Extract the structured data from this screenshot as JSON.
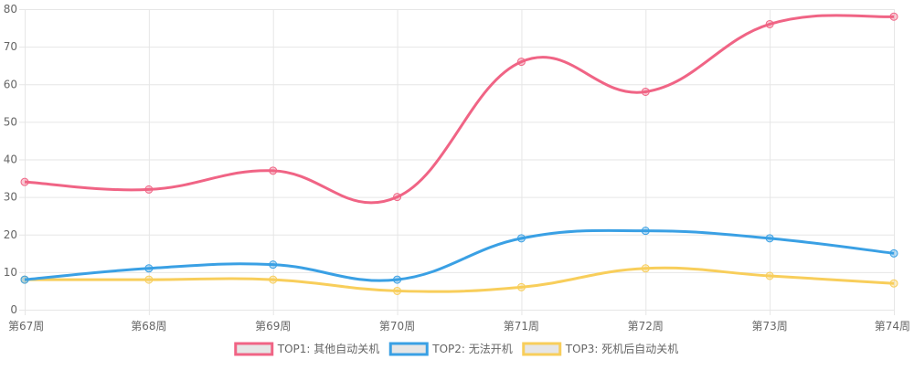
{
  "chart_data": {
    "type": "line",
    "categories": [
      "第67周",
      "第68周",
      "第69周",
      "第70周",
      "第71周",
      "第72周",
      "第73周",
      "第74周"
    ],
    "series": [
      {
        "name": "TOP1: 其他自动关机",
        "values": [
          34,
          32,
          37,
          30,
          66,
          58,
          76,
          78
        ],
        "color": "#f06485"
      },
      {
        "name": "TOP2: 无法开机",
        "values": [
          8,
          11,
          12,
          8,
          19,
          21,
          19,
          15
        ],
        "color": "#3aa0e4"
      },
      {
        "name": "TOP3: 死机后自动关机",
        "values": [
          8,
          8,
          8,
          5,
          6,
          11,
          9,
          7
        ],
        "color": "#f8ce5b"
      }
    ],
    "ylim": [
      0,
      80
    ],
    "yticks": [
      0,
      10,
      20,
      30,
      40,
      50,
      60,
      70,
      80
    ],
    "grid": true,
    "legend": "bottom",
    "curve": "smooth",
    "legend_fill": "#e6e6e6",
    "grid_color": "#e6e6e6",
    "label_color": "#666666"
  }
}
